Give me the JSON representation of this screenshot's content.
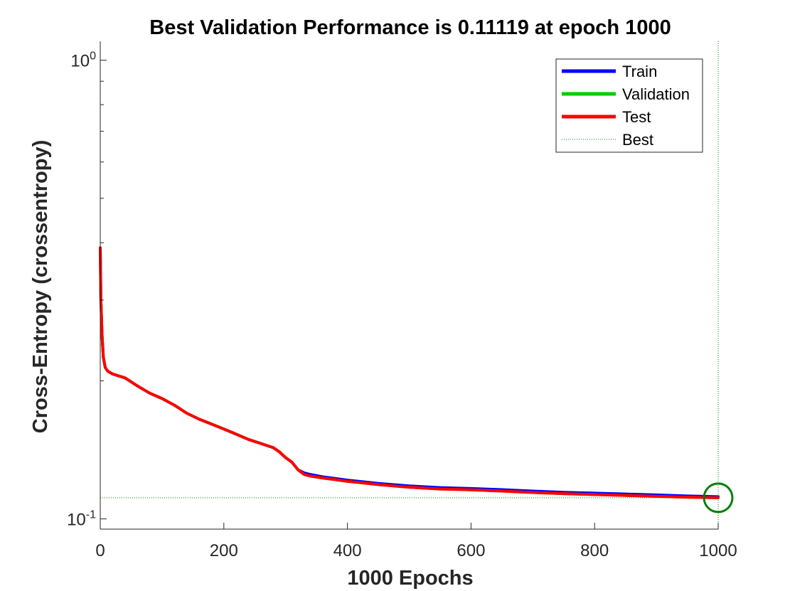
{
  "chart_data": {
    "type": "line",
    "title": "Best Validation Performance is 0.11119 at epoch 1000",
    "xlabel": "1000 Epochs",
    "ylabel": "Cross-Entropy  (crossentropy)",
    "xlim": [
      0,
      1000
    ],
    "ylim": [
      0.095,
      1.1
    ],
    "yscale": "log",
    "x_ticks": [
      0,
      200,
      400,
      600,
      800,
      1000
    ],
    "x_tick_labels": [
      "0",
      "200",
      "400",
      "600",
      "800",
      "1000"
    ],
    "y_tick_labels": [
      {
        "value": 1.0,
        "base": "10",
        "exp": "0"
      },
      {
        "value": 0.1,
        "base": "10",
        "exp": "-1"
      }
    ],
    "grid": false,
    "legend_placement": "top-right",
    "legend": [
      "Train",
      "Validation",
      "Test",
      "Best"
    ],
    "best": {
      "epoch": 1000,
      "value": 0.11119
    },
    "series": [
      {
        "name": "Train",
        "color": "#0000ff",
        "x": [
          0,
          1,
          3,
          5,
          8,
          12,
          20,
          40,
          60,
          80,
          100,
          120,
          140,
          160,
          180,
          200,
          220,
          240,
          260,
          280,
          290,
          300,
          310,
          320,
          330,
          340,
          360,
          380,
          400,
          450,
          500,
          550,
          600,
          650,
          700,
          750,
          800,
          850,
          900,
          950,
          1000
        ],
        "values": [
          0.39,
          0.3,
          0.25,
          0.225,
          0.214,
          0.21,
          0.207,
          0.203,
          0.195,
          0.188,
          0.183,
          0.177,
          0.17,
          0.165,
          0.161,
          0.157,
          0.153,
          0.149,
          0.146,
          0.143,
          0.14,
          0.136,
          0.133,
          0.128,
          0.126,
          0.125,
          0.1235,
          0.1225,
          0.1215,
          0.1195,
          0.118,
          0.117,
          0.1165,
          0.1158,
          0.115,
          0.1143,
          0.1138,
          0.1133,
          0.1128,
          0.1122,
          0.1118
        ]
      },
      {
        "name": "Validation",
        "color": "#00cc00",
        "x": [
          0,
          1,
          3,
          5,
          8,
          12,
          20,
          40,
          60,
          80,
          100,
          120,
          140,
          160,
          180,
          200,
          220,
          240,
          260,
          280,
          290,
          300,
          310,
          320,
          330,
          340,
          360,
          380,
          400,
          450,
          500,
          550,
          600,
          650,
          700,
          750,
          800,
          850,
          900,
          950,
          1000
        ],
        "values": [
          0.39,
          0.3,
          0.25,
          0.225,
          0.214,
          0.21,
          0.207,
          0.203,
          0.195,
          0.188,
          0.183,
          0.177,
          0.17,
          0.165,
          0.161,
          0.157,
          0.153,
          0.149,
          0.146,
          0.143,
          0.14,
          0.136,
          0.133,
          0.128,
          0.125,
          0.124,
          0.1228,
          0.1218,
          0.1208,
          0.1188,
          0.1172,
          0.1162,
          0.1157,
          0.115,
          0.1142,
          0.1135,
          0.113,
          0.1125,
          0.112,
          0.1115,
          0.11119
        ]
      },
      {
        "name": "Test",
        "color": "#ff0000",
        "x": [
          0,
          1,
          3,
          5,
          8,
          12,
          20,
          40,
          60,
          80,
          100,
          120,
          140,
          160,
          180,
          200,
          220,
          240,
          260,
          280,
          290,
          300,
          310,
          320,
          330,
          340,
          360,
          380,
          400,
          450,
          500,
          550,
          600,
          650,
          700,
          750,
          800,
          850,
          900,
          950,
          1000
        ],
        "values": [
          0.39,
          0.3,
          0.25,
          0.225,
          0.214,
          0.21,
          0.207,
          0.203,
          0.195,
          0.188,
          0.183,
          0.177,
          0.17,
          0.165,
          0.161,
          0.157,
          0.153,
          0.149,
          0.146,
          0.143,
          0.14,
          0.136,
          0.133,
          0.128,
          0.125,
          0.124,
          0.1228,
          0.1218,
          0.1208,
          0.1188,
          0.1172,
          0.1162,
          0.1157,
          0.115,
          0.1142,
          0.1135,
          0.113,
          0.1125,
          0.112,
          0.1115,
          0.1112
        ]
      }
    ],
    "colors": {
      "train": "#0000ff",
      "validation": "#00cc00",
      "test": "#ff0000",
      "best_line": "#008000",
      "best_marker": "#008000",
      "axis": "#262626"
    }
  }
}
